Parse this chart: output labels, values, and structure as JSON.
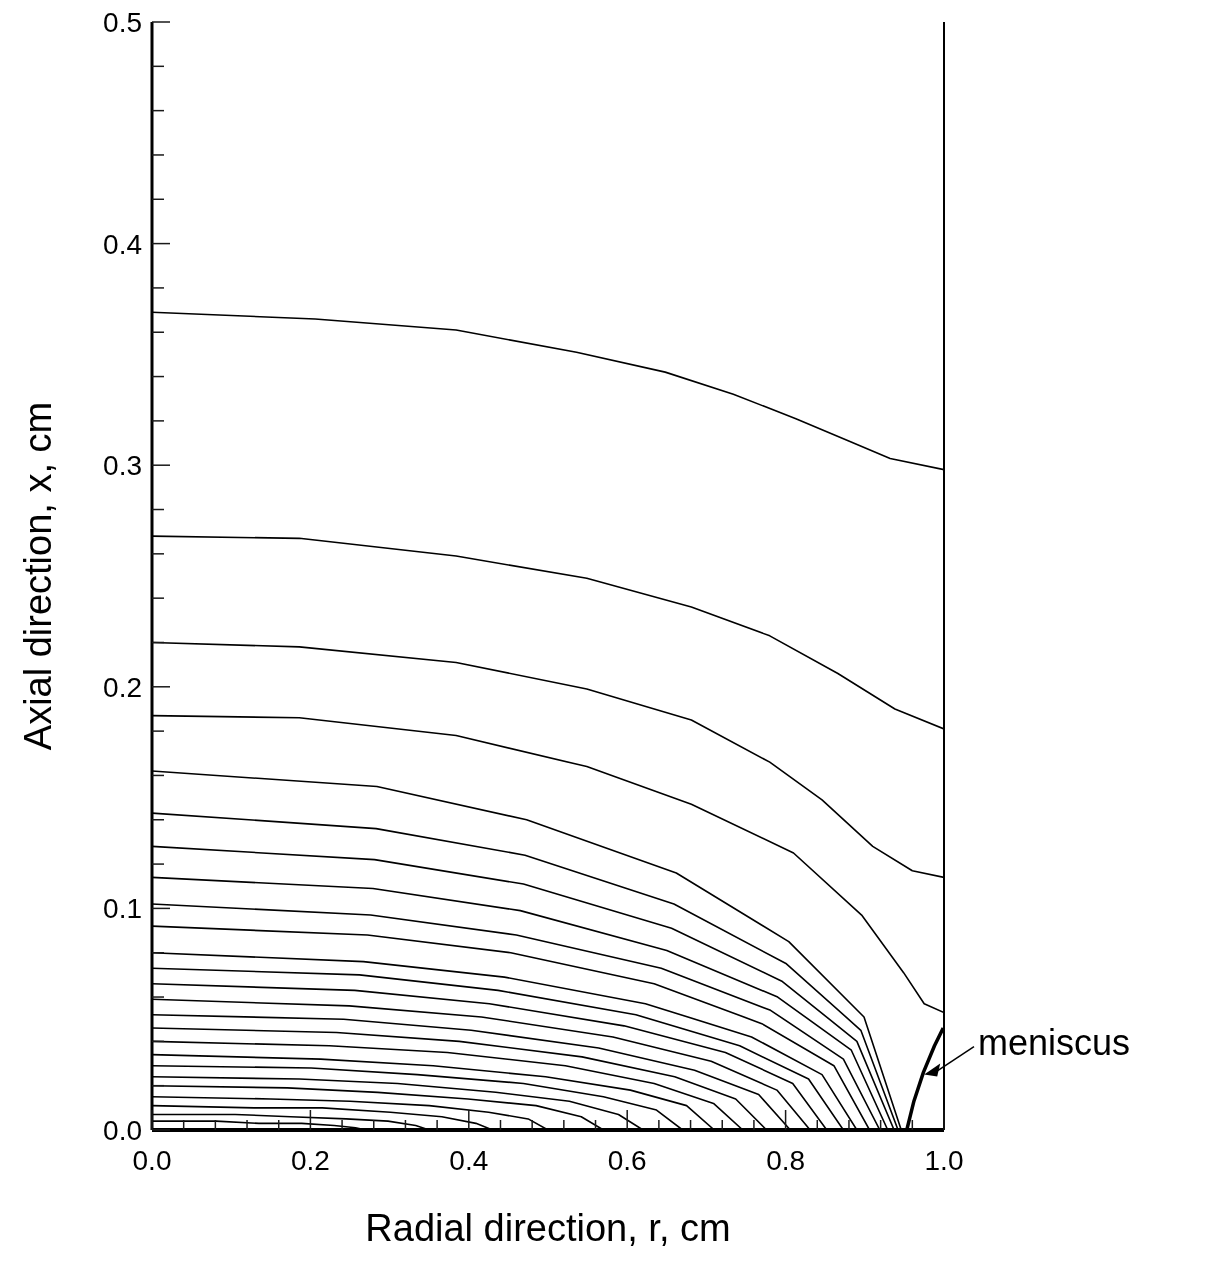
{
  "chart_data": {
    "type": "line",
    "xlabel": "Radial direction, r, cm",
    "ylabel": "Axial direction, x, cm",
    "xlim": [
      0,
      1
    ],
    "ylim": [
      0,
      0.5
    ],
    "xticks": [
      {
        "value": 0,
        "label": "0.0"
      },
      {
        "value": 0.04,
        "label": null
      },
      {
        "value": 0.08,
        "label": null
      },
      {
        "value": 0.12,
        "label": null
      },
      {
        "value": 0.16,
        "label": null
      },
      {
        "value": 0.2,
        "label": "0.2"
      },
      {
        "value": 0.24,
        "label": null
      },
      {
        "value": 0.28,
        "label": null
      },
      {
        "value": 0.32,
        "label": null
      },
      {
        "value": 0.36,
        "label": null
      },
      {
        "value": 0.4,
        "label": "0.4"
      },
      {
        "value": 0.44,
        "label": null
      },
      {
        "value": 0.48,
        "label": null
      },
      {
        "value": 0.52,
        "label": null
      },
      {
        "value": 0.56,
        "label": null
      },
      {
        "value": 0.6,
        "label": "0.6"
      },
      {
        "value": 0.64,
        "label": null
      },
      {
        "value": 0.68,
        "label": null
      },
      {
        "value": 0.72,
        "label": null
      },
      {
        "value": 0.76,
        "label": null
      },
      {
        "value": 0.8,
        "label": "0.8"
      },
      {
        "value": 0.84,
        "label": null
      },
      {
        "value": 0.88,
        "label": null
      },
      {
        "value": 0.92,
        "label": null
      },
      {
        "value": 0.96,
        "label": null
      },
      {
        "value": 1,
        "label": "1.0"
      }
    ],
    "yticks": [
      {
        "value": 0,
        "label": "0.0"
      },
      {
        "value": 0.02,
        "label": null
      },
      {
        "value": 0.04,
        "label": null
      },
      {
        "value": 0.06,
        "label": null
      },
      {
        "value": 0.08,
        "label": null
      },
      {
        "value": 0.1,
        "label": "0.1"
      },
      {
        "value": 0.12,
        "label": null
      },
      {
        "value": 0.14,
        "label": null
      },
      {
        "value": 0.16,
        "label": null
      },
      {
        "value": 0.18,
        "label": null
      },
      {
        "value": 0.2,
        "label": "0.2"
      },
      {
        "value": 0.22,
        "label": null
      },
      {
        "value": 0.24,
        "label": null
      },
      {
        "value": 0.26,
        "label": null
      },
      {
        "value": 0.28,
        "label": null
      },
      {
        "value": 0.3,
        "label": "0.3"
      },
      {
        "value": 0.32,
        "label": null
      },
      {
        "value": 0.34,
        "label": null
      },
      {
        "value": 0.36,
        "label": null
      },
      {
        "value": 0.38,
        "label": null
      },
      {
        "value": 0.4,
        "label": "0.4"
      },
      {
        "value": 0.42,
        "label": null
      },
      {
        "value": 0.44,
        "label": null
      },
      {
        "value": 0.46,
        "label": null
      },
      {
        "value": 0.48,
        "label": null
      },
      {
        "value": 0.5,
        "label": "0.5"
      }
    ],
    "grid": false,
    "legend": false,
    "marker": "none",
    "line_style": "solid",
    "annotations": [
      {
        "text": "meniscus",
        "x": 0.975,
        "y": 0.025
      }
    ],
    "series": [
      {
        "color": "#000000",
        "x": [
          0,
          0.206,
          0.384,
          0.536,
          0.648,
          0.734,
          0.813,
          0.879,
          0.932,
          1
        ],
        "values": [
          0.369,
          0.366,
          0.361,
          0.351,
          0.342,
          0.332,
          0.321,
          0.311,
          0.303,
          0.298
        ]
      },
      {
        "color": "#000000",
        "x": [
          0,
          0.186,
          0.384,
          0.549,
          0.681,
          0.78,
          0.866,
          0.938,
          1
        ],
        "values": [
          0.268,
          0.267,
          0.259,
          0.249,
          0.236,
          0.223,
          0.206,
          0.19,
          0.181
        ]
      },
      {
        "color": "#000000",
        "x": [
          0,
          0.186,
          0.384,
          0.549,
          0.681,
          0.78,
          0.846,
          0.91,
          0.96,
          1
        ],
        "values": [
          0.22,
          0.218,
          0.211,
          0.199,
          0.185,
          0.166,
          0.149,
          0.128,
          0.117,
          0.114
        ]
      },
      {
        "color": "#000000",
        "x": [
          0,
          0.186,
          0.384,
          0.549,
          0.681,
          0.81,
          0.896,
          0.949,
          0.975,
          1
        ],
        "values": [
          0.187,
          0.186,
          0.178,
          0.164,
          0.147,
          0.125,
          0.097,
          0.071,
          0.057,
          0.053
        ]
      },
      {
        "color": "#000000",
        "x": [
          0,
          0.284,
          0.473,
          0.662,
          0.804,
          0.899,
          0.946
        ],
        "values": [
          0.162,
          0.155,
          0.14,
          0.116,
          0.085,
          0.051,
          0
        ]
      },
      {
        "color": "#000000",
        "x": [
          0,
          0.283,
          0.471,
          0.659,
          0.801,
          0.895,
          0.942
        ],
        "values": [
          0.143,
          0.136,
          0.124,
          0.102,
          0.075,
          0.045,
          0
        ]
      },
      {
        "color": "#000000",
        "x": [
          0,
          0.281,
          0.469,
          0.656,
          0.796,
          0.89,
          0.937
        ],
        "values": [
          0.128,
          0.122,
          0.111,
          0.091,
          0.067,
          0.04,
          0
        ]
      },
      {
        "color": "#000000",
        "x": [
          0,
          0.279,
          0.465,
          0.65,
          0.79,
          0.883,
          0.929
        ],
        "values": [
          0.114,
          0.109,
          0.099,
          0.081,
          0.06,
          0.036,
          0
        ]
      },
      {
        "color": "#000000",
        "x": [
          0,
          0.276,
          0.46,
          0.643,
          0.781,
          0.873,
          0.919
        ],
        "values": [
          0.102,
          0.097,
          0.088,
          0.073,
          0.054,
          0.032,
          0
        ]
      },
      {
        "color": "#000000",
        "x": [
          0,
          0.272,
          0.453,
          0.634,
          0.77,
          0.861,
          0.906
        ],
        "values": [
          0.092,
          0.088,
          0.08,
          0.066,
          0.048,
          0.029,
          0
        ]
      },
      {
        "color": "#000000",
        "x": [
          0,
          0.267,
          0.445,
          0.623,
          0.757,
          0.846,
          0.89
        ],
        "values": [
          0.08,
          0.076,
          0.069,
          0.057,
          0.042,
          0.025,
          0
        ]
      },
      {
        "color": "#000000",
        "x": [
          0,
          0.262,
          0.437,
          0.611,
          0.742,
          0.829,
          0.873
        ],
        "values": [
          0.073,
          0.07,
          0.063,
          0.052,
          0.038,
          0.023,
          0
        ]
      },
      {
        "color": "#000000",
        "x": [
          0,
          0.256,
          0.426,
          0.596,
          0.724,
          0.809,
          0.852
        ],
        "values": [
          0.066,
          0.063,
          0.057,
          0.047,
          0.035,
          0.021,
          0
        ]
      },
      {
        "color": "#000000",
        "x": [
          0,
          0.249,
          0.416,
          0.582,
          0.706,
          0.789,
          0.831
        ],
        "values": [
          0.059,
          0.056,
          0.051,
          0.042,
          0.031,
          0.018,
          0
        ]
      },
      {
        "color": "#000000",
        "x": [
          0,
          0.242,
          0.403,
          0.564,
          0.685,
          0.766,
          0.806
        ],
        "values": [
          0.052,
          0.05,
          0.045,
          0.037,
          0.027,
          0.016,
          0
        ]
      },
      {
        "color": "#000000",
        "x": [
          0,
          0.233,
          0.388,
          0.543,
          0.66,
          0.737,
          0.776
        ],
        "values": [
          0.046,
          0.044,
          0.04,
          0.033,
          0.024,
          0.014,
          0
        ]
      },
      {
        "color": "#000000",
        "x": [
          0,
          0.224,
          0.373,
          0.522,
          0.634,
          0.709,
          0.746
        ],
        "values": [
          0.04,
          0.038,
          0.035,
          0.029,
          0.021,
          0.012,
          0
        ]
      },
      {
        "color": "#000000",
        "x": [
          0,
          0.213,
          0.355,
          0.497,
          0.604,
          0.675,
          0.71
        ],
        "values": [
          0.034,
          0.032,
          0.029,
          0.024,
          0.018,
          0.011,
          0
        ]
      },
      {
        "color": "#000000",
        "x": [
          0,
          0.201,
          0.335,
          0.469,
          0.57,
          0.637,
          0.67
        ],
        "values": [
          0.029,
          0.028,
          0.025,
          0.021,
          0.015,
          0.009,
          0
        ]
      },
      {
        "color": "#000000",
        "x": [
          0,
          0.186,
          0.31,
          0.434,
          0.527,
          0.589,
          0.62
        ],
        "values": [
          0.024,
          0.023,
          0.021,
          0.017,
          0.013,
          0.007,
          0
        ]
      },
      {
        "color": "#000000",
        "x": [
          0,
          0.171,
          0.285,
          0.399,
          0.485,
          0.542,
          0.57
        ],
        "values": [
          0.02,
          0.019,
          0.017,
          0.014,
          0.011,
          0.006,
          0
        ]
      },
      {
        "color": "#000000",
        "x": [
          0,
          0.15,
          0.25,
          0.35,
          0.425,
          0.475,
          0.5
        ],
        "values": [
          0.015,
          0.014,
          0.013,
          0.011,
          0.008,
          0.005,
          0
        ]
      },
      {
        "color": "#000000",
        "x": [
          0,
          0.129,
          0.215,
          0.301,
          0.366,
          0.409,
          0.43
        ],
        "values": [
          0.011,
          0.01,
          0.01,
          0.008,
          0.006,
          0.003,
          0
        ]
      },
      {
        "color": "#000000",
        "x": [
          0,
          0.105,
          0.175,
          0.245,
          0.298,
          0.333,
          0.35
        ],
        "values": [
          0.007,
          0.007,
          0.006,
          0.005,
          0.004,
          0.002,
          0
        ]
      },
      {
        "color": "#000000",
        "x": [
          0,
          0.081,
          0.135,
          0.189,
          0.23,
          0.257,
          0.27
        ],
        "values": [
          0.004,
          0.004,
          0.003,
          0.003,
          0.002,
          0.001,
          0
        ]
      },
      {
        "color": "#000000",
        "x": [
          0.953,
          0.962,
          0.974,
          0.988,
          0.999
        ],
        "values": [
          0,
          0.013,
          0.026,
          0.038,
          0.046
        ]
      }
    ]
  }
}
